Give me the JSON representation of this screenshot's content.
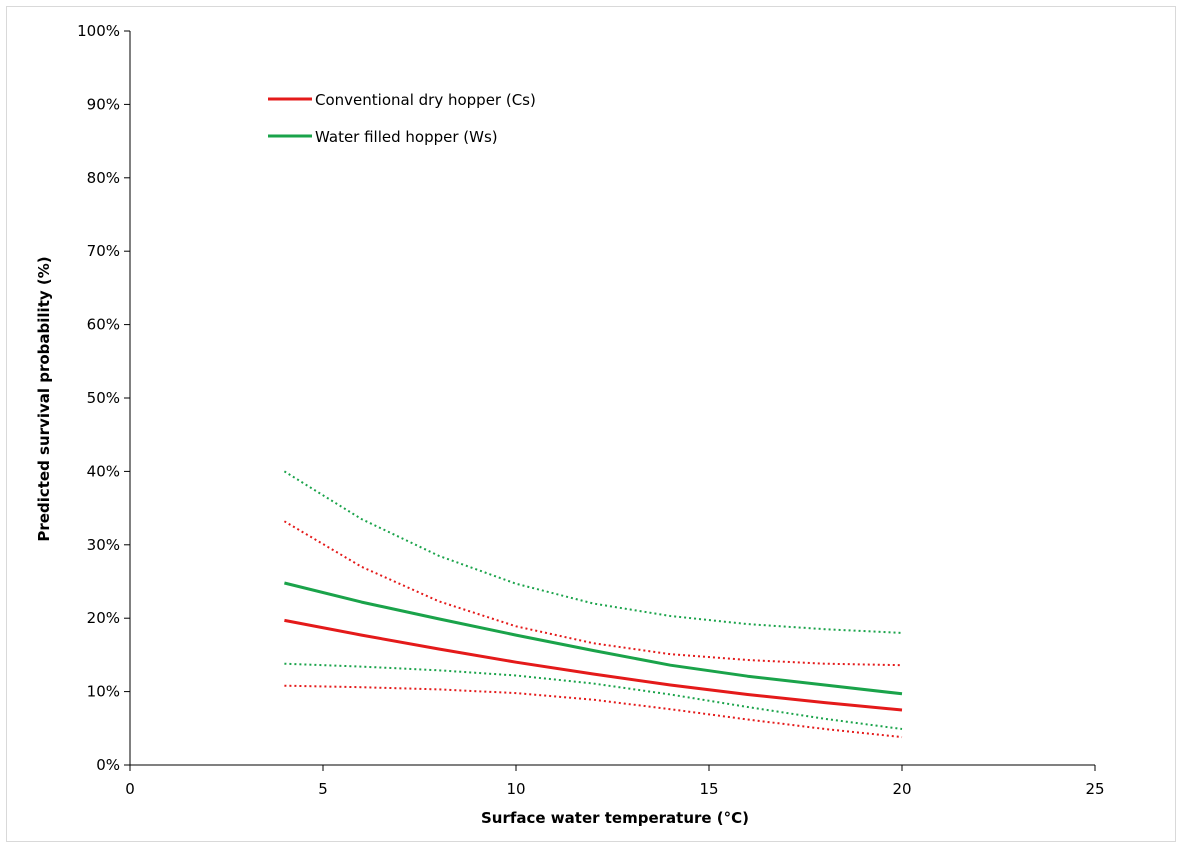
{
  "chart_data": {
    "type": "line",
    "title": "",
    "xlabel": "Surface water temperature (°C)",
    "ylabel": "Predicted survival probability (%)",
    "xlim": [
      0,
      25
    ],
    "ylim": [
      0,
      100
    ],
    "x_ticks": [
      0,
      5,
      10,
      15,
      20,
      25
    ],
    "x_tick_labels": [
      "0",
      "5",
      "10",
      "15",
      "20",
      "25"
    ],
    "y_ticks": [
      0,
      10,
      20,
      30,
      40,
      50,
      60,
      70,
      80,
      90,
      100
    ],
    "y_tick_labels": [
      "0%",
      "10%",
      "20%",
      "30%",
      "40%",
      "50%",
      "60%",
      "70%",
      "80%",
      "90%",
      "100%"
    ],
    "grid": false,
    "legend_position": "top-left",
    "legend": [
      {
        "label": "Conventional dry hopper (Cs)",
        "color": "#e41a1a"
      },
      {
        "label": "Water filled hopper (Ws)",
        "color": "#1aa34a"
      }
    ],
    "x": [
      4,
      6,
      8,
      10,
      12,
      14,
      16,
      18,
      20
    ],
    "series": [
      {
        "name": "Conventional dry hopper (Cs)",
        "style": "solid",
        "color": "#e41a1a",
        "values": [
          19.7,
          17.7,
          15.8,
          14.0,
          12.4,
          10.9,
          9.6,
          8.5,
          7.5
        ]
      },
      {
        "style": "dotted",
        "color": "#e41a1a",
        "values": [
          33.2,
          27.0,
          22.3,
          18.9,
          16.6,
          15.1,
          14.3,
          13.8,
          13.6
        ]
      },
      {
        "style": "dotted",
        "color": "#e41a1a",
        "values": [
          10.8,
          10.6,
          10.3,
          9.8,
          8.9,
          7.6,
          6.2,
          4.9,
          3.8
        ]
      },
      {
        "name": "Water filled hopper (Ws)",
        "style": "solid",
        "color": "#1aa34a",
        "values": [
          24.8,
          22.2,
          19.9,
          17.7,
          15.6,
          13.6,
          12.1,
          10.9,
          9.7
        ]
      },
      {
        "style": "dotted",
        "color": "#1aa34a",
        "values": [
          40.0,
          33.5,
          28.5,
          24.7,
          22.0,
          20.3,
          19.2,
          18.5,
          18.0
        ]
      },
      {
        "style": "dotted",
        "color": "#1aa34a",
        "values": [
          13.8,
          13.4,
          12.9,
          12.2,
          11.1,
          9.6,
          7.9,
          6.3,
          4.9
        ]
      }
    ]
  }
}
